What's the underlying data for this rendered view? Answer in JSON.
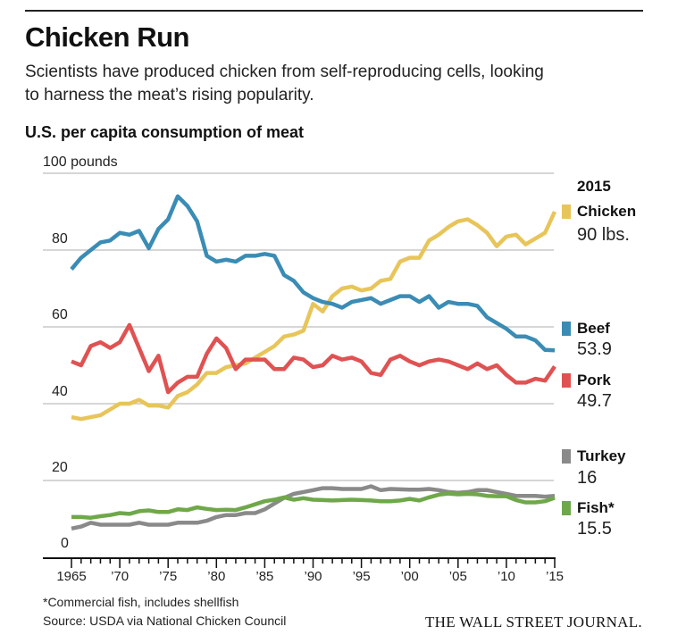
{
  "header": {
    "title": "Chicken Run",
    "subtitle_lines": [
      "Scientists have produced chicken from self-reproducing cells, looking",
      "to harness the meat’s rising popularity."
    ]
  },
  "footer": {
    "footnote": "*Commercial fish, includes shellfish",
    "source": "Source: USDA via National Chicken Council",
    "logo": "THE WALL STREET JOURNAL."
  },
  "chart_data": {
    "type": "line",
    "title": "U.S. per capita consumption of meat",
    "ylabel": "100 pounds",
    "ylim": [
      0,
      100
    ],
    "yticks": [
      0,
      20,
      40,
      60,
      80,
      100
    ],
    "ytick_labels": [
      "0",
      "20",
      "40",
      "60",
      "80",
      "100 pounds"
    ],
    "xlim": [
      1965,
      2015
    ],
    "xtick_labels": [
      "1965",
      "’70",
      "’75",
      "’80",
      "’85",
      "’90",
      "’95",
      "’00",
      "’05",
      "’10",
      "’15"
    ],
    "xtick_years": [
      1965,
      1970,
      1975,
      1980,
      1985,
      1990,
      1995,
      2000,
      2005,
      2010,
      2015
    ],
    "grid": true,
    "legend_position": "right",
    "legend_header": "2015",
    "x": [
      1965,
      1966,
      1967,
      1968,
      1969,
      1970,
      1971,
      1972,
      1973,
      1974,
      1975,
      1976,
      1977,
      1978,
      1979,
      1980,
      1981,
      1982,
      1983,
      1984,
      1985,
      1986,
      1987,
      1988,
      1989,
      1990,
      1991,
      1992,
      1993,
      1994,
      1995,
      1996,
      1997,
      1998,
      1999,
      2000,
      2001,
      2002,
      2003,
      2004,
      2005,
      2006,
      2007,
      2008,
      2009,
      2010,
      2011,
      2012,
      2013,
      2014,
      2015
    ],
    "series": [
      {
        "name": "Chicken",
        "label_value": "90 lbs.",
        "color": "#e8c55a",
        "values": [
          36.5,
          36,
          36.5,
          37,
          38.5,
          40,
          40,
          41,
          39.5,
          39.5,
          39,
          42,
          43,
          45,
          48,
          48,
          49.5,
          50,
          50.5,
          52,
          53.5,
          55,
          57.5,
          58,
          59,
          66,
          64,
          68,
          70,
          70.5,
          69.5,
          70,
          72,
          72.5,
          77,
          78,
          78,
          82.5,
          84,
          86,
          87.5,
          88,
          86.5,
          84.5,
          81,
          83.5,
          84,
          81.5,
          83,
          84.5,
          90
        ]
      },
      {
        "name": "Beef",
        "label_value": "53.9",
        "color": "#3a8cb5",
        "values": [
          75,
          78,
          80,
          82,
          82.5,
          84.5,
          84,
          85,
          80.5,
          85.5,
          88,
          94,
          91.5,
          87.5,
          78.5,
          77,
          77.5,
          77,
          78.5,
          78.5,
          79,
          78.5,
          73.5,
          72,
          69,
          67.5,
          66.5,
          66,
          65,
          66.5,
          67,
          67.5,
          66,
          67,
          68,
          68,
          66.5,
          68,
          65,
          66.5,
          66,
          66,
          65.5,
          62.5,
          61,
          59.5,
          57.5,
          57.5,
          56.5,
          54,
          53.9
        ]
      },
      {
        "name": "Pork",
        "label_value": "49.7",
        "color": "#e05252",
        "values": [
          51,
          50,
          55,
          56,
          54.5,
          56,
          60.5,
          54.5,
          48.5,
          52.5,
          43,
          45.5,
          47,
          47,
          53,
          57,
          54.5,
          49,
          51.5,
          51.5,
          51.5,
          49,
          49,
          52,
          51.5,
          49.5,
          50,
          52.5,
          51.5,
          52,
          51,
          48,
          47.5,
          51.5,
          52.5,
          51,
          50,
          51,
          51.5,
          51,
          50,
          49,
          50.5,
          49,
          50,
          47.5,
          45.5,
          45.5,
          46.5,
          46,
          49.7
        ]
      },
      {
        "name": "Turkey",
        "label_value": "16",
        "color": "#8a8a8a",
        "values": [
          7.5,
          8,
          9,
          8.5,
          8.5,
          8.5,
          8.5,
          9,
          8.5,
          8.5,
          8.5,
          9,
          9,
          9,
          9.5,
          10.5,
          11,
          11,
          11.5,
          11.5,
          12.5,
          14,
          15.5,
          16.5,
          17,
          17.5,
          18,
          18,
          17.8,
          17.8,
          17.8,
          18.5,
          17.5,
          17.8,
          17.7,
          17.6,
          17.6,
          17.8,
          17.5,
          17,
          16.8,
          17,
          17.5,
          17.5,
          17,
          16.5,
          16,
          16,
          16,
          15.8,
          16
        ]
      },
      {
        "name": "Fish*",
        "label_value": "15.5",
        "color": "#6fa84a",
        "values": [
          10.5,
          10.5,
          10.3,
          10.7,
          11,
          11.5,
          11.3,
          12,
          12.2,
          11.8,
          11.8,
          12.5,
          12.3,
          13,
          12.6,
          12.3,
          12.4,
          12.3,
          13,
          13.8,
          14.6,
          15,
          15.6,
          15,
          15.4,
          15,
          14.9,
          14.8,
          14.9,
          15,
          14.9,
          14.8,
          14.6,
          14.6,
          14.8,
          15.2,
          14.8,
          15.6,
          16.3,
          16.6,
          16.4,
          16.5,
          16.4,
          16,
          15.9,
          15.9,
          14.9,
          14.3,
          14.3,
          14.6,
          15.5
        ]
      }
    ]
  }
}
